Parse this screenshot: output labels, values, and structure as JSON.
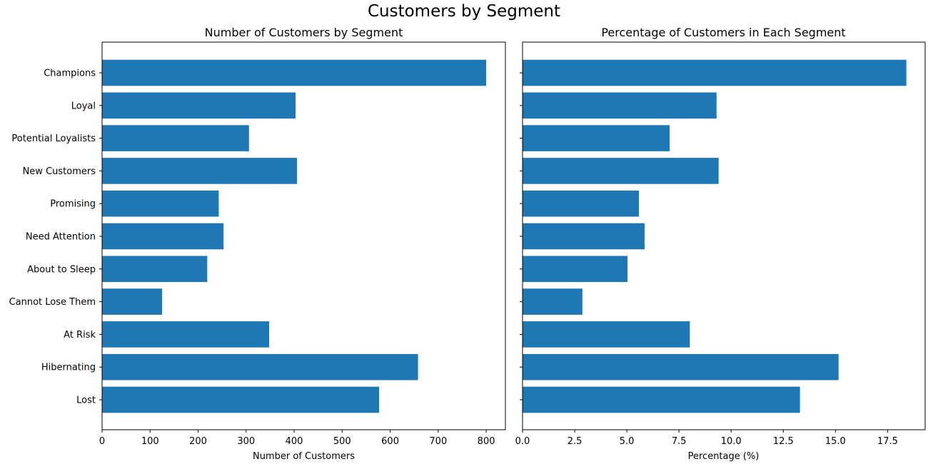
{
  "figure": {
    "title": "Customers by Segment"
  },
  "chart_data": [
    {
      "type": "bar",
      "orientation": "horizontal",
      "title": "Number of Customers by Segment",
      "xlabel": "Number of Customers",
      "ylabel": "",
      "xlim": [
        0,
        840
      ],
      "xticks": [
        0,
        100,
        200,
        300,
        400,
        500,
        600,
        700,
        800
      ],
      "xtick_labels": [
        "0",
        "100",
        "200",
        "300",
        "400",
        "500",
        "600",
        "700",
        "800"
      ],
      "categories": [
        "Champions",
        "Loyal",
        "Potential Loyalists",
        "New Customers",
        "Promising",
        "Need Attention",
        "About to Sleep",
        "Cannot Lose Them",
        "At Risk",
        "Hibernating",
        "Lost"
      ],
      "values": [
        800,
        403,
        306,
        406,
        243,
        253,
        219,
        125,
        348,
        658,
        577
      ],
      "bar_color": "#1f77b4",
      "grid": false
    },
    {
      "type": "bar",
      "orientation": "horizontal",
      "title": "Percentage of Customers in Each Segment",
      "xlabel": "Percentage (%)",
      "ylabel": "",
      "xlim": [
        0,
        19.3
      ],
      "xticks": [
        0,
        2.5,
        5,
        7.5,
        10,
        12.5,
        15,
        17.5
      ],
      "xtick_labels": [
        "0.0",
        "2.5",
        "5.0",
        "7.5",
        "10.0",
        "12.5",
        "15.0",
        "17.5"
      ],
      "categories": [
        "Champions",
        "Loyal",
        "Potential Loyalists",
        "New Customers",
        "Promising",
        "Need Attention",
        "About to Sleep",
        "Cannot Lose Them",
        "At Risk",
        "Hibernating",
        "Lost"
      ],
      "values": [
        18.4,
        9.3,
        7.05,
        9.4,
        5.58,
        5.85,
        5.03,
        2.87,
        8.02,
        15.15,
        13.3
      ],
      "bar_color": "#1f77b4",
      "grid": false
    }
  ]
}
